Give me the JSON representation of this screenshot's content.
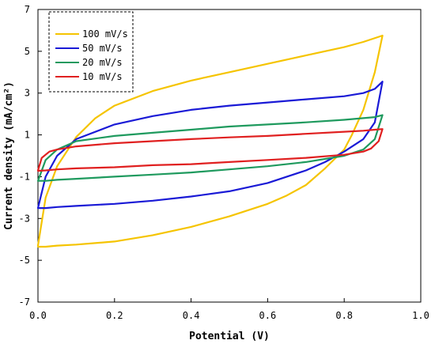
{
  "chart_data": {
    "type": "line",
    "title": "",
    "xlabel": "Potential (V)",
    "ylabel": "Current density (mA/cm²)",
    "xlim": [
      0.0,
      1.0
    ],
    "ylim": [
      -7,
      7
    ],
    "x_ticks": [
      "0.0",
      "0.2",
      "0.4",
      "0.6",
      "0.8",
      "1.0"
    ],
    "y_ticks": [
      "-7",
      "-5",
      "-3",
      "-1",
      "1",
      "3",
      "5",
      "7"
    ],
    "grid": false,
    "legend_position": "top-left",
    "series": [
      {
        "name": "100 mV/s",
        "color": "#f5c400",
        "x": [
          0.0,
          0.02,
          0.05,
          0.1,
          0.15,
          0.2,
          0.3,
          0.4,
          0.5,
          0.6,
          0.7,
          0.8,
          0.85,
          0.9,
          0.88,
          0.85,
          0.82,
          0.8,
          0.75,
          0.7,
          0.65,
          0.6,
          0.5,
          0.4,
          0.3,
          0.2,
          0.1,
          0.05,
          0.02,
          0.0
        ],
        "y": [
          -4.3,
          -2.0,
          -0.5,
          0.9,
          1.8,
          2.4,
          3.1,
          3.6,
          4.0,
          4.4,
          4.8,
          5.2,
          5.45,
          5.75,
          4.0,
          2.2,
          1.0,
          0.3,
          -0.6,
          -1.4,
          -1.9,
          -2.3,
          -2.9,
          -3.4,
          -3.8,
          -4.1,
          -4.25,
          -4.3,
          -4.35,
          -4.35
        ]
      },
      {
        "name": "50 mV/s",
        "color": "#1a1ad6",
        "x": [
          0.0,
          0.02,
          0.05,
          0.1,
          0.2,
          0.3,
          0.4,
          0.5,
          0.6,
          0.7,
          0.8,
          0.85,
          0.88,
          0.9,
          0.88,
          0.85,
          0.8,
          0.75,
          0.7,
          0.6,
          0.5,
          0.4,
          0.3,
          0.2,
          0.1,
          0.05,
          0.02,
          0.0
        ],
        "y": [
          -2.5,
          -1.0,
          0.0,
          0.8,
          1.5,
          1.9,
          2.2,
          2.4,
          2.55,
          2.7,
          2.85,
          3.0,
          3.2,
          3.55,
          1.6,
          0.8,
          0.2,
          -0.3,
          -0.7,
          -1.3,
          -1.7,
          -1.95,
          -2.15,
          -2.3,
          -2.4,
          -2.45,
          -2.5,
          -2.5
        ]
      },
      {
        "name": "20 mV/s",
        "color": "#1f9a5e",
        "x": [
          0.0,
          0.02,
          0.05,
          0.1,
          0.2,
          0.3,
          0.4,
          0.5,
          0.6,
          0.7,
          0.8,
          0.85,
          0.88,
          0.9,
          0.88,
          0.85,
          0.8,
          0.7,
          0.6,
          0.5,
          0.4,
          0.3,
          0.2,
          0.1,
          0.05,
          0.02,
          0.0
        ],
        "y": [
          -1.2,
          -0.2,
          0.3,
          0.7,
          0.95,
          1.1,
          1.25,
          1.4,
          1.5,
          1.6,
          1.72,
          1.8,
          1.85,
          1.95,
          0.8,
          0.3,
          0.0,
          -0.3,
          -0.5,
          -0.65,
          -0.8,
          -0.9,
          -1.0,
          -1.1,
          -1.15,
          -1.2,
          -1.2
        ]
      },
      {
        "name": "10 mV/s",
        "color": "#e02020",
        "x": [
          0.0,
          0.01,
          0.03,
          0.05,
          0.1,
          0.2,
          0.3,
          0.4,
          0.5,
          0.6,
          0.7,
          0.8,
          0.85,
          0.88,
          0.9,
          0.89,
          0.87,
          0.85,
          0.8,
          0.7,
          0.6,
          0.5,
          0.4,
          0.3,
          0.2,
          0.1,
          0.05,
          0.02,
          0.0
        ],
        "y": [
          -0.7,
          -0.1,
          0.2,
          0.3,
          0.45,
          0.6,
          0.7,
          0.8,
          0.88,
          0.95,
          1.05,
          1.15,
          1.2,
          1.25,
          1.28,
          0.7,
          0.35,
          0.2,
          0.05,
          -0.1,
          -0.2,
          -0.3,
          -0.4,
          -0.45,
          -0.55,
          -0.6,
          -0.65,
          -0.7,
          -0.72
        ]
      }
    ]
  }
}
